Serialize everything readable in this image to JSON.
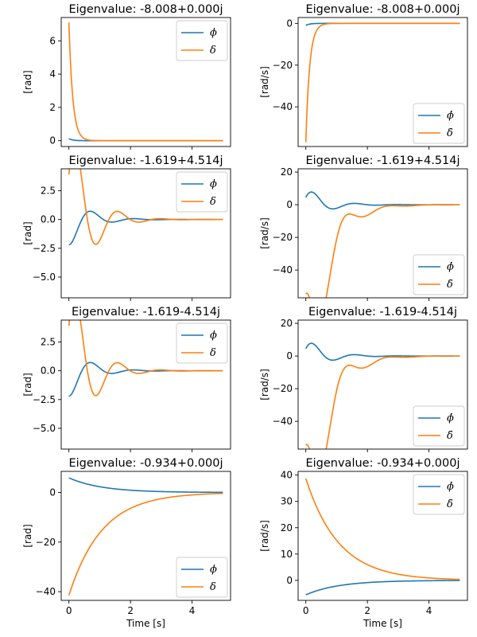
{
  "chart_data": [
    {
      "type": "line",
      "title": "Eigenvalue: -8.008+0.000j",
      "ylabel": "[rad]",
      "xlabel": "",
      "xlim": [
        -0.25,
        5.25
      ],
      "ylim": [
        -0.35,
        7.4
      ],
      "yticks": [
        0,
        2,
        4,
        6
      ],
      "xticks": [
        0,
        2,
        4
      ],
      "show_xtick_labels": false,
      "legend_position": "upper right",
      "series": [
        {
          "name": "ϕ",
          "color": "#1f77b4",
          "start": 0.12,
          "decay": 8.008,
          "omega": 0,
          "phase": 0
        },
        {
          "name": "δ",
          "color": "#ff7f0e",
          "start": 7.1,
          "decay": 8.008,
          "omega": 0,
          "phase": 0
        }
      ]
    },
    {
      "type": "line",
      "title": "Eigenvalue: -8.008+0.000j",
      "ylabel": "[rad/s]",
      "xlabel": "",
      "xlim": [
        -0.25,
        5.25
      ],
      "ylim": [
        -59,
        2.8
      ],
      "yticks": [
        0,
        -20,
        -40
      ],
      "xticks": [
        0,
        2,
        4
      ],
      "show_xtick_labels": false,
      "legend_position": "lower right",
      "series": [
        {
          "name": "ϕ̇",
          "color": "#1f77b4",
          "start": -0.96,
          "decay": 8.008,
          "omega": 0,
          "phase": 0
        },
        {
          "name": "δ̇",
          "color": "#ff7f0e",
          "start": -56.9,
          "decay": 8.008,
          "omega": 0,
          "phase": 0
        }
      ]
    },
    {
      "type": "line",
      "title": "Eigenvalue: -1.619+4.514j",
      "ylabel": "[rad]",
      "xlabel": "",
      "xlim": [
        -0.25,
        5.25
      ],
      "ylim": [
        -6.8,
        4.4
      ],
      "yticks": [
        2.5,
        0.0,
        -2.5,
        -5.0
      ],
      "xticks": [
        0,
        2,
        4
      ],
      "show_xtick_labels": false,
      "legend_position": "upper right",
      "series": [
        {
          "name": "ϕ",
          "color": "#1f77b4",
          "start": -2.2,
          "decay": 1.619,
          "omega": 4.514,
          "amplitude": 2.33,
          "phase": -1.9
        },
        {
          "name": "δ",
          "color": "#ff7f0e",
          "start": 3.9,
          "decay": 1.619,
          "omega": 4.514,
          "amplitude": 9.4,
          "phase": 0.43
        }
      ]
    },
    {
      "type": "line",
      "title": "Eigenvalue: -1.619+4.514j",
      "ylabel": "[rad/s]",
      "xlabel": "",
      "xlim": [
        -0.25,
        5.25
      ],
      "ylim": [
        -57,
        22
      ],
      "yticks": [
        20,
        0,
        -20,
        -40
      ],
      "xticks": [
        0,
        2,
        4
      ],
      "show_xtick_labels": false,
      "legend_position": "lower right",
      "series": [
        {
          "name": "ϕ̇",
          "color": "#1f77b4",
          "start": 4.5,
          "decay": 1.619,
          "omega": 4.514,
          "amplitude": 11.1,
          "phase": 0.42
        },
        {
          "name": "δ̇",
          "color": "#ff7f0e",
          "start": -54.6,
          "decay": 1.619,
          "omega": 4.514,
          "amplitude": 56.3,
          "phase": 1.81
        }
      ]
    },
    {
      "type": "line",
      "title": "Eigenvalue: -1.619-4.514j",
      "ylabel": "[rad]",
      "xlabel": "",
      "xlim": [
        -0.25,
        5.25
      ],
      "ylim": [
        -6.8,
        4.4
      ],
      "yticks": [
        2.5,
        0.0,
        -2.5,
        -5.0
      ],
      "xticks": [
        0,
        2,
        4
      ],
      "show_xtick_labels": false,
      "legend_position": "upper right",
      "series": [
        {
          "name": "ϕ",
          "color": "#1f77b4",
          "start": -2.2,
          "decay": 1.619,
          "omega": 4.514,
          "amplitude": 2.33,
          "phase": -1.9
        },
        {
          "name": "δ",
          "color": "#ff7f0e",
          "start": 3.9,
          "decay": 1.619,
          "omega": 4.514,
          "amplitude": 9.4,
          "phase": 0.43
        }
      ]
    },
    {
      "type": "line",
      "title": "Eigenvalue: -1.619-4.514j",
      "ylabel": "[rad/s]",
      "xlabel": "",
      "xlim": [
        -0.25,
        5.25
      ],
      "ylim": [
        -57,
        22
      ],
      "yticks": [
        20,
        0,
        -20,
        -40
      ],
      "xticks": [
        0,
        2,
        4
      ],
      "show_xtick_labels": false,
      "legend_position": "lower right",
      "series": [
        {
          "name": "ϕ̇",
          "color": "#1f77b4",
          "start": 4.5,
          "decay": 1.619,
          "omega": 4.514,
          "amplitude": 11.1,
          "phase": 0.42
        },
        {
          "name": "δ̇",
          "color": "#ff7f0e",
          "start": -54.6,
          "decay": 1.619,
          "omega": 4.514,
          "amplitude": 56.3,
          "phase": 1.81
        }
      ]
    },
    {
      "type": "line",
      "title": "Eigenvalue: -0.934+0.000j",
      "ylabel": "[rad]",
      "xlabel": "Time [s]",
      "xlim": [
        -0.25,
        5.25
      ],
      "ylim": [
        -43.5,
        8.5
      ],
      "yticks": [
        0,
        -20,
        -40
      ],
      "xticks": [
        0,
        2,
        4
      ],
      "show_xtick_labels": true,
      "legend_position": "lower right",
      "series": [
        {
          "name": "ϕ",
          "color": "#1f77b4",
          "start": 5.9,
          "decay": 0.934,
          "omega": 0,
          "phase": 0
        },
        {
          "name": "δ",
          "color": "#ff7f0e",
          "start": -41.5,
          "decay": 0.934,
          "omega": 0,
          "phase": 0
        }
      ]
    },
    {
      "type": "line",
      "title": "Eigenvalue: -0.934+0.000j",
      "ylabel": "[rad/s]",
      "xlabel": "Time [s]",
      "xlim": [
        -0.25,
        5.25
      ],
      "ylim": [
        -7.6,
        41.4
      ],
      "yticks": [
        40,
        30,
        20,
        10,
        0
      ],
      "xticks": [
        0,
        2,
        4
      ],
      "show_xtick_labels": true,
      "legend_position": "upper right",
      "series": [
        {
          "name": "ϕ̇",
          "color": "#1f77b4",
          "start": -5.5,
          "decay": 0.934,
          "omega": 0,
          "phase": 0
        },
        {
          "name": "δ̇",
          "color": "#ff7f0e",
          "start": 38.7,
          "decay": 0.934,
          "omega": 0,
          "phase": 0
        }
      ]
    }
  ]
}
